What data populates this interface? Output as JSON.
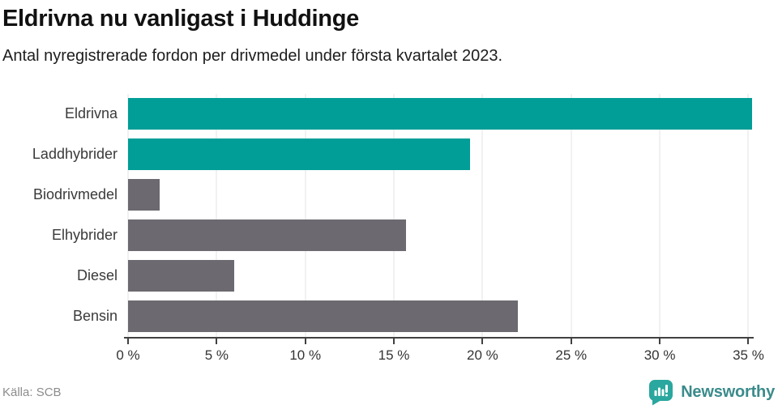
{
  "header": {
    "title": "Eldrivna nu vanligast i Huddinge",
    "subtitle": "Antal nyregistrerade fordon per drivmedel under första kvartalet 2023."
  },
  "chart_data": {
    "type": "bar",
    "orientation": "horizontal",
    "title": "Eldrivna nu vanligast i Huddinge",
    "subtitle": "Antal nyregistrerade fordon per drivmedel under första kvartalet 2023.",
    "categories": [
      "Eldrivna",
      "Laddhybrider",
      "Biodrivmedel",
      "Elhybrider",
      "Diesel",
      "Bensin"
    ],
    "values": [
      35.2,
      19.3,
      1.8,
      15.7,
      6.0,
      22.0
    ],
    "unit": "%",
    "xlim": [
      0,
      35.3
    ],
    "xticks": [
      0,
      5,
      10,
      15,
      20,
      25,
      30,
      35
    ],
    "xtick_labels": [
      "0 %",
      "5 %",
      "10 %",
      "15 %",
      "20 %",
      "25 %",
      "30 %",
      "35 %"
    ],
    "grid": true,
    "legend": "none",
    "colors": {
      "highlight": "#009e97",
      "default": "#6c6a70"
    },
    "bar_colors": [
      "#009e97",
      "#009e97",
      "#6c6a70",
      "#6c6a70",
      "#6c6a70",
      "#6c6a70"
    ]
  },
  "footer": {
    "source": "Källa: SCB",
    "brand": "Newsworthy"
  },
  "icons": {
    "brand_logo": "newsworthy-chart-bubble-icon",
    "brand_logo_color": "#2aa79e"
  }
}
